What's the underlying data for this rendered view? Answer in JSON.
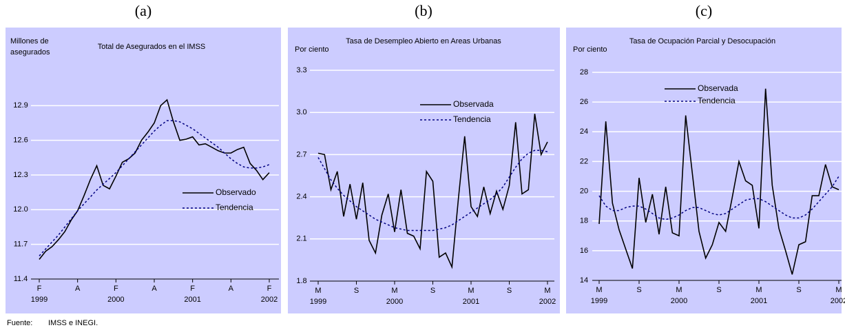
{
  "chart_data": [
    {
      "type": "line",
      "panel_label": "(a)",
      "title": "Total de Asegurados en el IMSS",
      "y_label": [
        "Millones de",
        "asegurados"
      ],
      "categories": [
        [
          "F",
          "1999"
        ],
        null,
        null,
        null,
        null,
        null,
        [
          "A"
        ],
        null,
        null,
        null,
        null,
        null,
        [
          "F",
          "2000"
        ],
        null,
        null,
        null,
        null,
        null,
        [
          "A"
        ],
        null,
        null,
        null,
        null,
        null,
        [
          "F",
          "2001"
        ],
        null,
        null,
        null,
        null,
        null,
        [
          "A"
        ],
        null,
        null,
        null,
        null,
        null,
        [
          "F",
          "2002"
        ]
      ],
      "ylim": [
        11.4,
        13.2
      ],
      "yticks": [
        11.4,
        11.7,
        {
          "value": 12,
          "label": "12.0"
        },
        12.3,
        12.6,
        12.9
      ],
      "grid": true,
      "series": [
        {
          "name": "Observado",
          "color": "#000000",
          "style": "solid",
          "values": [
            11.57,
            11.64,
            11.68,
            11.74,
            11.81,
            11.91,
            11.99,
            12.12,
            12.26,
            12.38,
            12.21,
            12.18,
            12.29,
            12.41,
            12.44,
            12.49,
            12.6,
            12.67,
            12.75,
            12.9,
            12.95,
            12.76,
            12.6,
            12.61,
            12.63,
            12.56,
            12.57,
            12.54,
            12.51,
            12.49,
            12.49,
            12.52,
            12.54,
            12.4,
            12.34,
            12.26,
            12.32
          ]
        },
        {
          "name": "Tendencia",
          "color": "#000080",
          "style": "dotted",
          "values": [
            11.6,
            11.66,
            11.72,
            11.78,
            11.85,
            11.92,
            11.99,
            12.05,
            12.11,
            12.17,
            12.22,
            12.27,
            12.32,
            12.38,
            12.44,
            12.5,
            12.56,
            12.62,
            12.68,
            12.73,
            12.77,
            12.77,
            12.76,
            12.73,
            12.7,
            12.66,
            12.62,
            12.58,
            12.54,
            12.49,
            12.44,
            12.4,
            12.37,
            12.36,
            12.36,
            12.37,
            12.39
          ]
        }
      ]
    },
    {
      "type": "line",
      "panel_label": "(b)",
      "title": "Tasa de Desempleo Abierto en Areas Urbanas",
      "y_label": [
        "Por ciento"
      ],
      "categories": [
        [
          "M",
          "1999"
        ],
        null,
        null,
        null,
        null,
        null,
        [
          "S"
        ],
        null,
        null,
        null,
        null,
        null,
        [
          "M",
          "2000"
        ],
        null,
        null,
        null,
        null,
        null,
        [
          "S"
        ],
        null,
        null,
        null,
        null,
        null,
        [
          "M",
          "2001"
        ],
        null,
        null,
        null,
        null,
        null,
        [
          "S"
        ],
        null,
        null,
        null,
        null,
        null,
        [
          "M",
          "2002"
        ]
      ],
      "ylim": [
        1.8,
        3.3
      ],
      "yticks": [
        1.8,
        2.1,
        2.4,
        2.7,
        {
          "value": 3,
          "label": "3.0"
        },
        3.3
      ],
      "grid": true,
      "series": [
        {
          "name": "Observada",
          "color": "#000000",
          "style": "solid",
          "values": [
            2.71,
            2.7,
            2.45,
            2.58,
            2.26,
            2.49,
            2.24,
            2.5,
            2.09,
            2.0,
            2.27,
            2.42,
            2.15,
            2.45,
            2.14,
            2.12,
            2.03,
            2.58,
            2.51,
            1.97,
            2.0,
            1.9,
            2.38,
            2.83,
            2.33,
            2.26,
            2.47,
            2.28,
            2.44,
            2.31,
            2.48,
            2.93,
            2.42,
            2.45,
            2.99,
            2.7,
            2.79
          ]
        },
        {
          "name": "Tendencia",
          "color": "#000080",
          "style": "dotted",
          "values": [
            2.68,
            2.6,
            2.52,
            2.46,
            2.41,
            2.37,
            2.33,
            2.3,
            2.27,
            2.24,
            2.22,
            2.2,
            2.18,
            2.17,
            2.16,
            2.16,
            2.16,
            2.16,
            2.16,
            2.17,
            2.18,
            2.2,
            2.23,
            2.26,
            2.29,
            2.32,
            2.35,
            2.38,
            2.42,
            2.47,
            2.54,
            2.61,
            2.67,
            2.71,
            2.73,
            2.73,
            2.72
          ]
        }
      ]
    },
    {
      "type": "line",
      "panel_label": "(c)",
      "title": "Tasa de Ocupación Parcial y Desocupación",
      "y_label": [
        "Por ciento"
      ],
      "categories": [
        [
          "M",
          "1999"
        ],
        null,
        null,
        null,
        null,
        null,
        [
          "S"
        ],
        null,
        null,
        null,
        null,
        null,
        [
          "M",
          "2000"
        ],
        null,
        null,
        null,
        null,
        null,
        [
          "S"
        ],
        null,
        null,
        null,
        null,
        null,
        [
          "M",
          "2001"
        ],
        null,
        null,
        null,
        null,
        null,
        [
          "S"
        ],
        null,
        null,
        null,
        null,
        null,
        [
          "M",
          "2002"
        ]
      ],
      "ylim": [
        14,
        28
      ],
      "yticks": [
        14,
        16,
        18,
        20,
        22,
        24,
        26,
        28
      ],
      "grid": true,
      "series": [
        {
          "name": "Observada",
          "color": "#000000",
          "style": "solid",
          "values": [
            17.8,
            24.7,
            19.2,
            17.4,
            16.1,
            14.8,
            20.9,
            17.9,
            19.8,
            17.1,
            20.3,
            17.2,
            17.0,
            25.1,
            21.2,
            17.3,
            15.5,
            16.4,
            17.9,
            17.3,
            19.6,
            22.0,
            20.7,
            20.4,
            17.5,
            26.9,
            20.4,
            17.5,
            16.0,
            14.4,
            16.4,
            16.6,
            19.7,
            19.7,
            21.8,
            20.3,
            20.1
          ]
        },
        {
          "name": "Tendencia",
          "color": "#000080",
          "style": "dotted",
          "values": [
            19.7,
            19.0,
            18.7,
            18.7,
            18.9,
            19.0,
            19.0,
            18.8,
            18.5,
            18.2,
            18.1,
            18.2,
            18.4,
            18.7,
            18.9,
            18.9,
            18.7,
            18.5,
            18.4,
            18.5,
            18.8,
            19.1,
            19.4,
            19.5,
            19.5,
            19.3,
            19.0,
            18.7,
            18.4,
            18.2,
            18.2,
            18.4,
            18.8,
            19.3,
            19.8,
            20.3,
            21.0
          ]
        }
      ]
    }
  ],
  "source": {
    "label": "Fuente:",
    "text": "IMSS e INEGI."
  }
}
